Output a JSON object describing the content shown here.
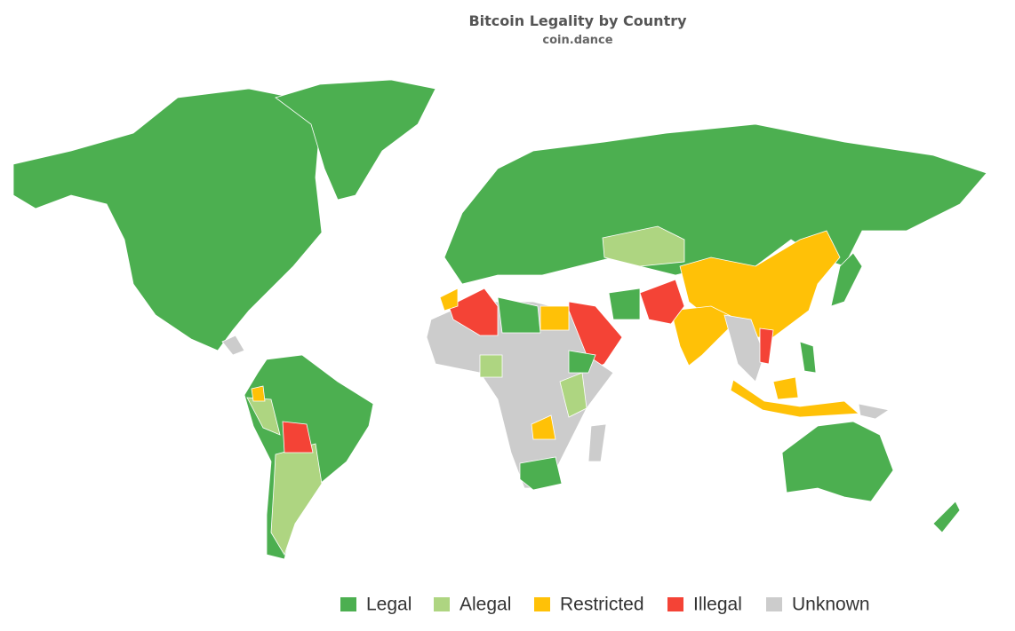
{
  "map": {
    "title": "Bitcoin Legality by Country",
    "subtitle": "coin.dance",
    "legend": [
      {
        "label": "Legal",
        "color": "#4caf50"
      },
      {
        "label": "Alegal",
        "color": "#aed581"
      },
      {
        "label": "Restricted",
        "color": "#ffc107"
      },
      {
        "label": "Illegal",
        "color": "#f44336"
      },
      {
        "label": "Unknown",
        "color": "#cccccc"
      }
    ]
  }
}
